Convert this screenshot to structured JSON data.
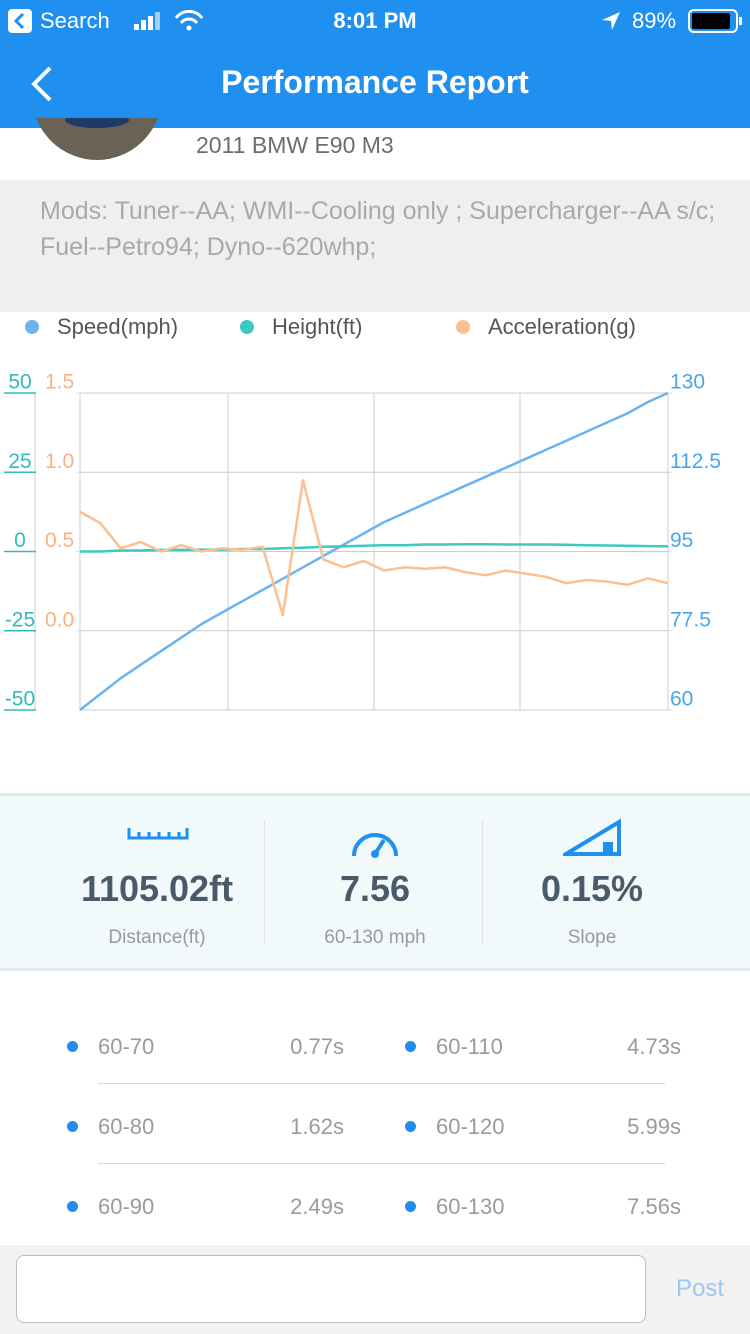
{
  "status_bar": {
    "back_app": "Search",
    "time": "8:01 PM",
    "battery": "89%"
  },
  "nav": {
    "title": "Performance Report"
  },
  "car": {
    "name": "2011 BMW E90 M3"
  },
  "mods": "Mods: Tuner--AA; WMI--Cooling only ; Supercharger--AA s/c; Fuel--Petro94; Dyno--620whp;",
  "chart_data": {
    "type": "line",
    "categories": [
      null,
      null,
      null,
      null,
      null,
      null,
      null,
      null,
      null,
      null,
      null,
      null,
      null,
      null,
      null,
      null,
      null,
      null,
      null,
      null,
      null,
      null,
      null,
      null,
      null,
      null,
      null,
      null,
      null,
      null
    ],
    "series": [
      {
        "name": "Speed(mph)",
        "color": "#6bb3ee",
        "axis": "y2",
        "values": [
          60,
          63.5,
          67,
          70,
          73,
          76,
          79,
          81.5,
          84,
          86.5,
          89,
          91.5,
          94,
          96.5,
          99,
          101.5,
          103.5,
          105.5,
          107.5,
          109.5,
          111.5,
          113.5,
          115.5,
          117.5,
          119.5,
          121.5,
          123.5,
          125.5,
          128,
          130
        ]
      },
      {
        "name": "Height(ft)",
        "color": "#3cc9c2",
        "values": [
          0,
          0,
          0.3,
          0.3,
          0.5,
          0.5,
          0.6,
          0.6,
          0.8,
          0.8,
          1.0,
          1.2,
          1.5,
          1.6,
          1.8,
          2.0,
          2.0,
          2.2,
          2.2,
          2.3,
          2.3,
          2.2,
          2.2,
          2.2,
          2.1,
          2.0,
          1.9,
          1.8,
          1.7,
          1.6
        ]
      },
      {
        "name": "Acceleration(g)",
        "color": "#fdbf8f",
        "axis": "y3",
        "values": [
          0.75,
          0.68,
          0.52,
          0.56,
          0.5,
          0.54,
          0.5,
          0.52,
          0.51,
          0.53,
          0.1,
          0.95,
          0.45,
          0.4,
          0.44,
          0.38,
          0.4,
          0.39,
          0.4,
          0.37,
          0.35,
          0.38,
          0.36,
          0.34,
          0.3,
          0.32,
          0.31,
          0.29,
          0.33,
          0.3
        ]
      }
    ],
    "ylim": [
      -50,
      50
    ],
    "yticks": [
      -50,
      -25,
      0,
      25,
      50
    ],
    "ytick_color": "#2fbdb9",
    "y2lim": [
      60,
      130
    ],
    "y2ticks": [
      60,
      77.5,
      95,
      112.5,
      130
    ],
    "y2tick_color": "#4aa6e8",
    "y3lim": [
      -0.5,
      1.5
    ],
    "y3ticks": [
      {
        "value": 0,
        "label": "0.0"
      },
      0.5,
      {
        "value": 1,
        "label": "1.0"
      },
      1.5
    ],
    "y3tick_color": "#f9b27e",
    "grid": true
  },
  "stats": [
    {
      "value": "1105.02ft",
      "label": "Distance(ft)"
    },
    {
      "value": "7.56",
      "label": "60-130 mph"
    },
    {
      "value": "0.15%",
      "label": "Slope"
    }
  ],
  "splits": [
    [
      {
        "range": "60-70",
        "time": "0.77s"
      },
      {
        "range": "60-110",
        "time": "4.73s"
      }
    ],
    [
      {
        "range": "60-80",
        "time": "1.62s"
      },
      {
        "range": "60-120",
        "time": "5.99s"
      }
    ],
    [
      {
        "range": "60-90",
        "time": "2.49s"
      },
      {
        "range": "60-130",
        "time": "7.56s"
      }
    ]
  ],
  "post": "Post"
}
